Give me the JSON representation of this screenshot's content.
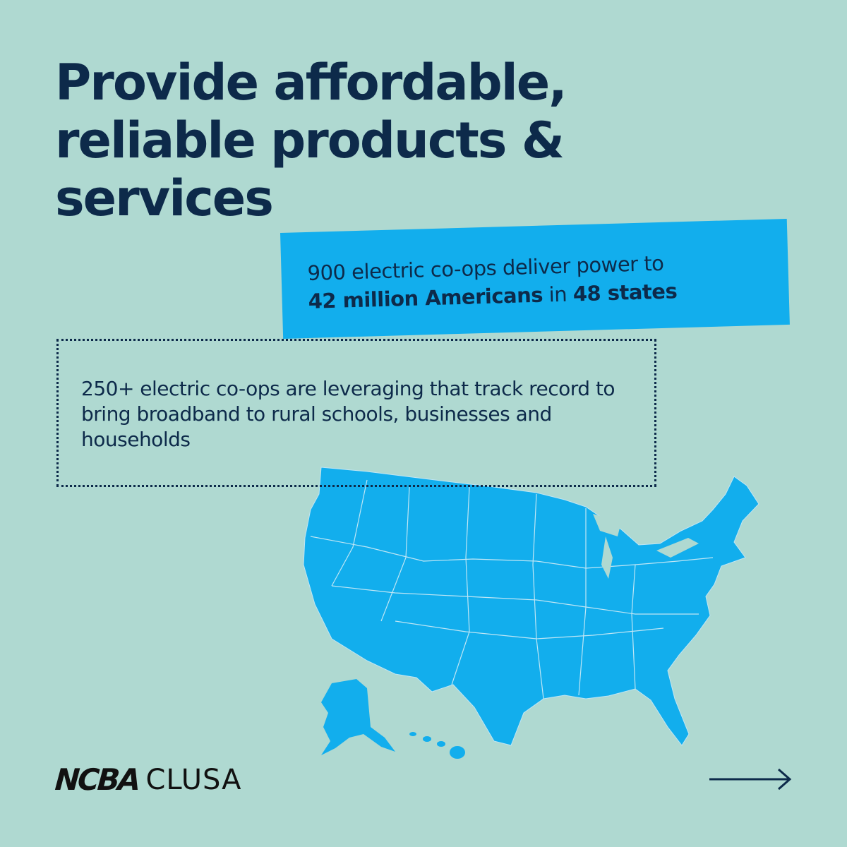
{
  "title": {
    "line1": "Provide affordable,",
    "line2": "reliable products &",
    "line3": "services"
  },
  "highlight": {
    "line1": "900 electric co-ops deliver power to",
    "bold1": "42 million Americans",
    "mid": " in ",
    "bold2": "48 states"
  },
  "note": {
    "text": "250+ electric co-ops are leveraging that track record to bring broadband to rural schools, businesses and households"
  },
  "logo": {
    "bold": "NCBA",
    "light": "CLUSA"
  },
  "next_icon": "arrow-right-icon",
  "colors": {
    "background": "#afd9d1",
    "accent": "#12aeed",
    "text": "#0d2a4a"
  }
}
